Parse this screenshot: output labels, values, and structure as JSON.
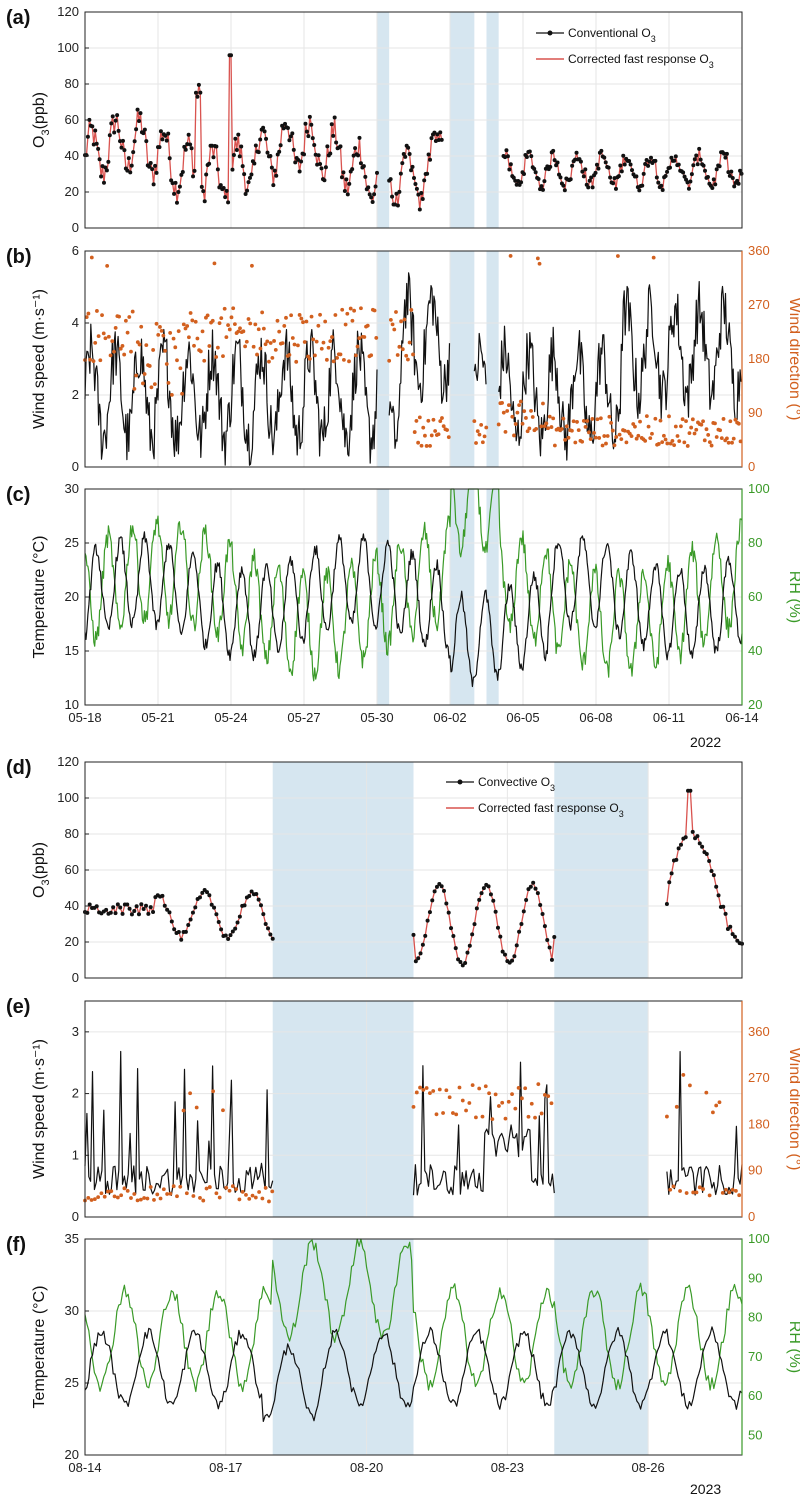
{
  "figure": {
    "year_top": "2022",
    "year_bottom": "2023"
  },
  "colors": {
    "black": "#111111",
    "red": "#d9534f",
    "orange": "#d2601f",
    "green": "#3a9a28",
    "shade": "#d6e6f0",
    "grid": "#e6e6e6"
  },
  "chart_data": [
    {
      "id": "a",
      "label": "(a)",
      "type": "line",
      "ylabel": "O₃ (ppb)",
      "ylabel_main": "O",
      "ylabel_sub": "3",
      "ylabel_tail": "(ppb)",
      "ylim": [
        0,
        120
      ],
      "yticks": [
        "0",
        "20",
        "40",
        "60",
        "80",
        "100",
        "120"
      ],
      "xlim": [
        0,
        27
      ],
      "shaded": [
        [
          12,
          12.5
        ],
        [
          15,
          16
        ],
        [
          16.5,
          17
        ]
      ],
      "legend": [
        {
          "label": "Conventional O",
          "sub": "3",
          "style": "black-marker"
        },
        {
          "label": "Corrected fast response O",
          "sub": "3",
          "style": "red-line"
        }
      ],
      "series": [
        {
          "name": "Conventional O3",
          "segments": [
            [
              0,
              12
            ],
            [
              12.5,
              14.7
            ],
            [
              17.2,
              27
            ]
          ],
          "mean": 38,
          "amp": 18,
          "spike": 96
        }
      ]
    },
    {
      "id": "b",
      "label": "(b)",
      "type": "line+scatter",
      "ylabel": "Wind speed (m·s⁻¹)",
      "ylim": [
        0,
        6
      ],
      "yticks": [
        "0",
        "2",
        "4",
        "6"
      ],
      "y2label": "Wind direction (°)",
      "y2lim": [
        0,
        360
      ],
      "y2ticks": [
        "0",
        "90",
        "180",
        "270",
        "360"
      ],
      "xlim": [
        0,
        27
      ],
      "shaded": [
        [
          12,
          12.5
        ],
        [
          15,
          16
        ],
        [
          16.5,
          17
        ]
      ],
      "series": [
        {
          "name": "Wind speed",
          "axis": "left",
          "segments": [
            [
              0,
              12
            ],
            [
              12.5,
              15
            ],
            [
              16,
              16.5
            ],
            [
              17,
              27
            ]
          ]
        },
        {
          "name": "Wind direction",
          "axis": "right",
          "segments": [
            [
              0,
              12
            ],
            [
              12.5,
              15
            ],
            [
              16,
              16.5
            ],
            [
              17,
              27
            ]
          ]
        }
      ]
    },
    {
      "id": "c",
      "label": "(c)",
      "type": "line",
      "ylabel": "Temperature (°C)",
      "ylim": [
        10,
        30
      ],
      "yticks": [
        "10",
        "15",
        "20",
        "25",
        "30"
      ],
      "y2label": "RH (%)",
      "y2lim": [
        20,
        100
      ],
      "y2ticks": [
        "20",
        "40",
        "60",
        "80",
        "100"
      ],
      "xlim": [
        0,
        27
      ],
      "xticks": [
        "05-18",
        "05-21",
        "05-24",
        "05-27",
        "05-30",
        "06-02",
        "06-05",
        "06-08",
        "06-11",
        "06-14"
      ],
      "shaded": [
        [
          12,
          12.5
        ],
        [
          15,
          16
        ],
        [
          16.5,
          17
        ]
      ],
      "series": [
        {
          "name": "Temperature",
          "axis": "left"
        },
        {
          "name": "RH",
          "axis": "right"
        }
      ]
    },
    {
      "id": "d",
      "label": "(d)",
      "type": "line",
      "ylabel": "O₃ (ppb)",
      "ylabel_main": "O",
      "ylabel_sub": "3",
      "ylabel_tail": "(ppb)",
      "ylim": [
        0,
        120
      ],
      "yticks": [
        "0",
        "20",
        "40",
        "60",
        "80",
        "100",
        "120"
      ],
      "xlim": [
        0,
        14
      ],
      "shaded": [
        [
          4,
          7
        ],
        [
          10,
          12
        ]
      ],
      "legend": [
        {
          "label": "Convective O",
          "sub": "3",
          "style": "black-marker"
        },
        {
          "label": "Corrected fast response O",
          "sub": "3",
          "style": "red-line"
        }
      ],
      "series": [
        {
          "name": "Convective O3",
          "segments": [
            [
              0,
              4
            ],
            [
              7,
              10
            ],
            [
              12.4,
              14
            ]
          ],
          "peak": 104
        }
      ]
    },
    {
      "id": "e",
      "label": "(e)",
      "type": "line+scatter",
      "ylabel": "Wind speed (m·s⁻¹)",
      "ylim": [
        0,
        3.5
      ],
      "yticks": [
        "0",
        "1",
        "2",
        "3"
      ],
      "y2label": "Wind direction (°)",
      "y2lim": [
        0,
        420
      ],
      "y2ticks": [
        "0",
        "90",
        "180",
        "270",
        "360"
      ],
      "xlim": [
        0,
        14
      ],
      "shaded": [
        [
          4,
          7
        ],
        [
          10,
          12
        ]
      ],
      "series": [
        {
          "name": "Wind speed",
          "axis": "left",
          "segments": [
            [
              0,
              4
            ],
            [
              7,
              10
            ],
            [
              12.4,
              14
            ]
          ]
        },
        {
          "name": "Wind direction",
          "axis": "right",
          "segments": [
            [
              0,
              4
            ],
            [
              7,
              10
            ],
            [
              12.4,
              14
            ]
          ]
        }
      ]
    },
    {
      "id": "f",
      "label": "(f)",
      "type": "line",
      "ylabel": "Temperature (°C)",
      "ylim": [
        20,
        35
      ],
      "yticks": [
        "20",
        "25",
        "30",
        "35"
      ],
      "y2label": "RH (%)",
      "y2lim": [
        45,
        100
      ],
      "y2ticks": [
        "50",
        "60",
        "70",
        "80",
        "90",
        "100"
      ],
      "xlim": [
        0,
        14
      ],
      "xticks": [
        "08-14",
        "08-17",
        "08-20",
        "08-23",
        "08-26"
      ],
      "xtick_pos": [
        0,
        3,
        6,
        9,
        12
      ],
      "shaded": [
        [
          4,
          7
        ],
        [
          10,
          12
        ]
      ],
      "series": [
        {
          "name": "Temperature",
          "axis": "left"
        },
        {
          "name": "RH",
          "axis": "right"
        }
      ]
    }
  ]
}
